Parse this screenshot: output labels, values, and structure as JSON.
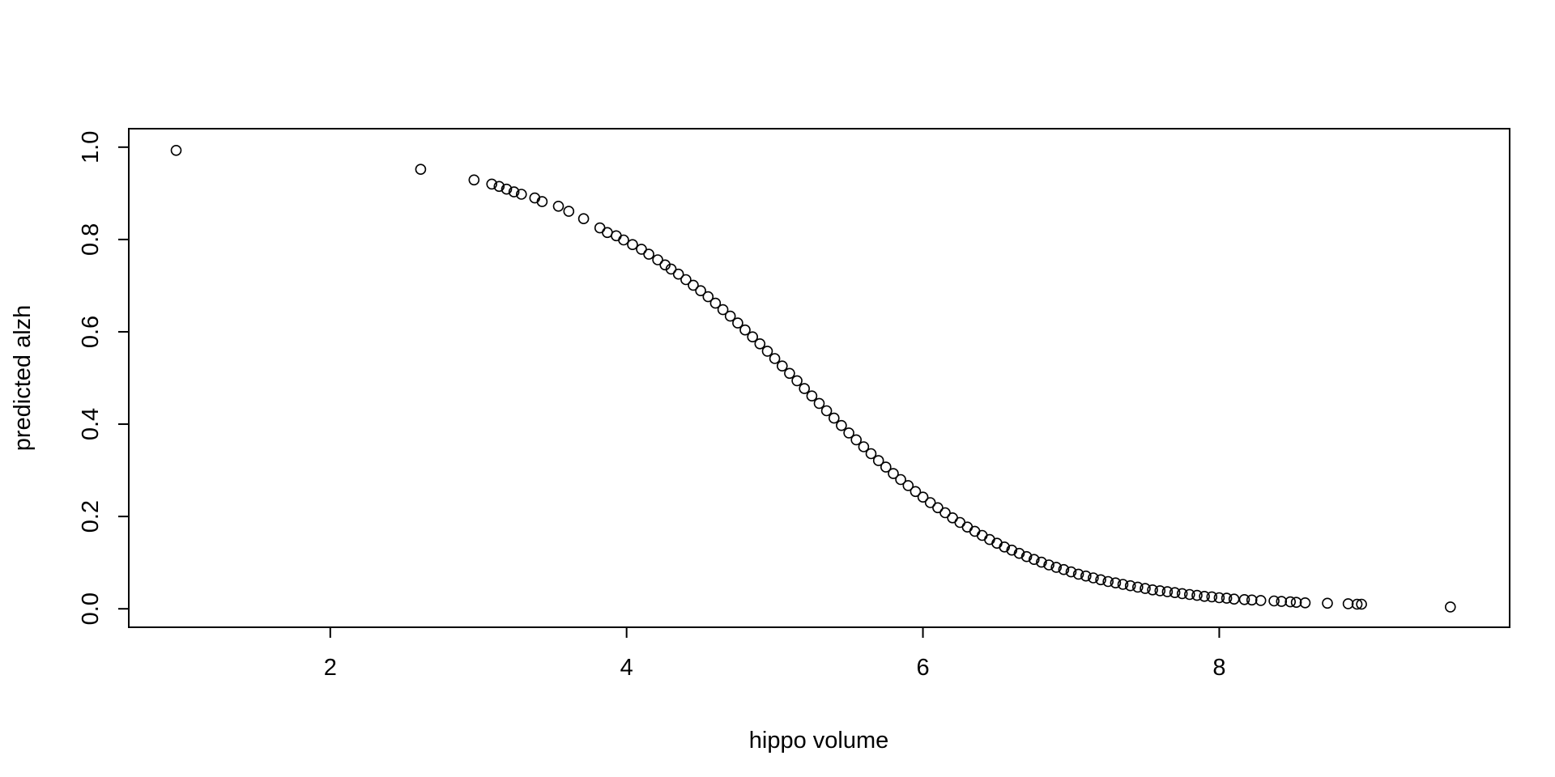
{
  "chart_data": {
    "type": "scatter",
    "title": "",
    "xlabel": "hippo volume",
    "ylabel": "predicted alzh",
    "xlim": [
      0.64,
      9.96
    ],
    "ylim": [
      -0.04,
      1.04
    ],
    "x_ticks": [
      2,
      4,
      6,
      8
    ],
    "x_tick_labels": [
      "2",
      "4",
      "6",
      "8"
    ],
    "y_ticks": [
      0.0,
      0.2,
      0.4,
      0.6,
      0.8,
      1.0
    ],
    "y_tick_labels": [
      "0.0",
      "0.2",
      "0.4",
      "0.6",
      "0.8",
      "1.0"
    ],
    "grid": false,
    "legend": "none",
    "marker": "open-circle",
    "series": [
      {
        "x": [
          0.96,
          2.61,
          2.97,
          3.09,
          3.14,
          3.19,
          3.24,
          3.29,
          3.38,
          3.43,
          3.54,
          3.61,
          3.71,
          3.82,
          3.87,
          3.93,
          3.98,
          4.04,
          4.1,
          4.15,
          4.21,
          4.26,
          4.3,
          4.35,
          4.4,
          4.45,
          4.5,
          4.55,
          4.6,
          4.65,
          4.7,
          4.75,
          4.8,
          4.85,
          4.9,
          4.95,
          5.0,
          5.05,
          5.1,
          5.15,
          5.2,
          5.25,
          5.3,
          5.35,
          5.4,
          5.45,
          5.5,
          5.55,
          5.6,
          5.65,
          5.7,
          5.75,
          5.8,
          5.85,
          5.9,
          5.95,
          6.0,
          6.05,
          6.1,
          6.15,
          6.2,
          6.25,
          6.3,
          6.35,
          6.4,
          6.45,
          6.5,
          6.55,
          6.6,
          6.65,
          6.7,
          6.75,
          6.8,
          6.85,
          6.9,
          6.95,
          7.0,
          7.05,
          7.1,
          7.15,
          7.2,
          7.25,
          7.3,
          7.35,
          7.4,
          7.45,
          7.5,
          7.55,
          7.6,
          7.65,
          7.7,
          7.75,
          7.8,
          7.85,
          7.9,
          7.95,
          8.0,
          8.05,
          8.1,
          8.17,
          8.22,
          8.28,
          8.37,
          8.42,
          8.48,
          8.52,
          8.58,
          8.73,
          8.87,
          8.93,
          8.96,
          9.56
        ],
        "y": [
          0.993,
          0.952,
          0.929,
          0.92,
          0.915,
          0.909,
          0.903,
          0.898,
          0.89,
          0.882,
          0.872,
          0.861,
          0.845,
          0.825,
          0.815,
          0.808,
          0.799,
          0.789,
          0.779,
          0.768,
          0.756,
          0.745,
          0.736,
          0.725,
          0.713,
          0.701,
          0.689,
          0.676,
          0.662,
          0.648,
          0.634,
          0.619,
          0.604,
          0.589,
          0.574,
          0.558,
          0.542,
          0.526,
          0.51,
          0.494,
          0.477,
          0.461,
          0.445,
          0.429,
          0.413,
          0.397,
          0.381,
          0.366,
          0.351,
          0.336,
          0.321,
          0.307,
          0.293,
          0.28,
          0.267,
          0.254,
          0.242,
          0.23,
          0.219,
          0.208,
          0.197,
          0.187,
          0.177,
          0.168,
          0.159,
          0.15,
          0.142,
          0.134,
          0.127,
          0.12,
          0.113,
          0.107,
          0.101,
          0.095,
          0.09,
          0.085,
          0.08,
          0.075,
          0.071,
          0.067,
          0.063,
          0.059,
          0.056,
          0.053,
          0.05,
          0.047,
          0.044,
          0.041,
          0.039,
          0.037,
          0.035,
          0.033,
          0.031,
          0.029,
          0.027,
          0.026,
          0.024,
          0.023,
          0.021,
          0.02,
          0.019,
          0.018,
          0.017,
          0.016,
          0.015,
          0.014,
          0.013,
          0.012,
          0.011,
          0.01,
          0.01,
          0.004
        ]
      }
    ]
  }
}
